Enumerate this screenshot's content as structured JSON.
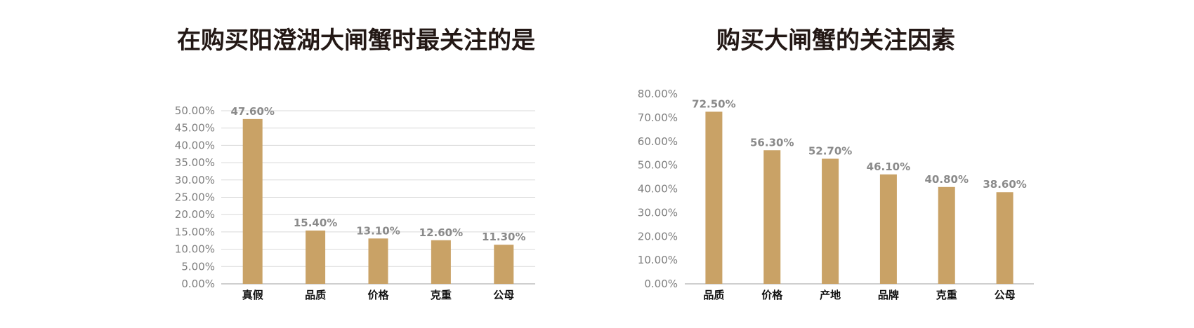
{
  "theme": {
    "bar_color": "#C9A266",
    "grid_color": "#d9d9d9",
    "axis_color": "#bfbfbf"
  },
  "chart_data": [
    {
      "type": "bar",
      "title": "在购买阳澄湖大闸蟹时最关注的是",
      "categories": [
        "真假",
        "品质",
        "价格",
        "克重",
        "公母"
      ],
      "values": [
        47.6,
        15.4,
        13.1,
        12.6,
        11.3
      ],
      "value_labels": [
        "47.60%",
        "15.40%",
        "13.10%",
        "12.60%",
        "11.30%"
      ],
      "yticks": [
        "0.00%",
        "5.00%",
        "10.00%",
        "15.00%",
        "20.00%",
        "25.00%",
        "30.00%",
        "35.00%",
        "40.00%",
        "45.00%",
        "50.00%"
      ],
      "ylim": [
        0,
        50
      ],
      "grid": true,
      "legend": "none"
    },
    {
      "type": "bar",
      "title": "购买大闸蟹的关注因素",
      "categories": [
        "品质",
        "价格",
        "产地",
        "品牌",
        "克重",
        "公母"
      ],
      "values": [
        72.5,
        56.3,
        52.7,
        46.1,
        40.8,
        38.6
      ],
      "value_labels": [
        "72.50%",
        "56.30%",
        "52.70%",
        "46.10%",
        "40.80%",
        "38.60%"
      ],
      "yticks": [
        "0.00%",
        "10.00%",
        "20.00%",
        "30.00%",
        "40.00%",
        "50.00%",
        "60.00%",
        "70.00%",
        "80.00%"
      ],
      "ylim": [
        0,
        80
      ],
      "grid": false,
      "legend": "none"
    }
  ]
}
